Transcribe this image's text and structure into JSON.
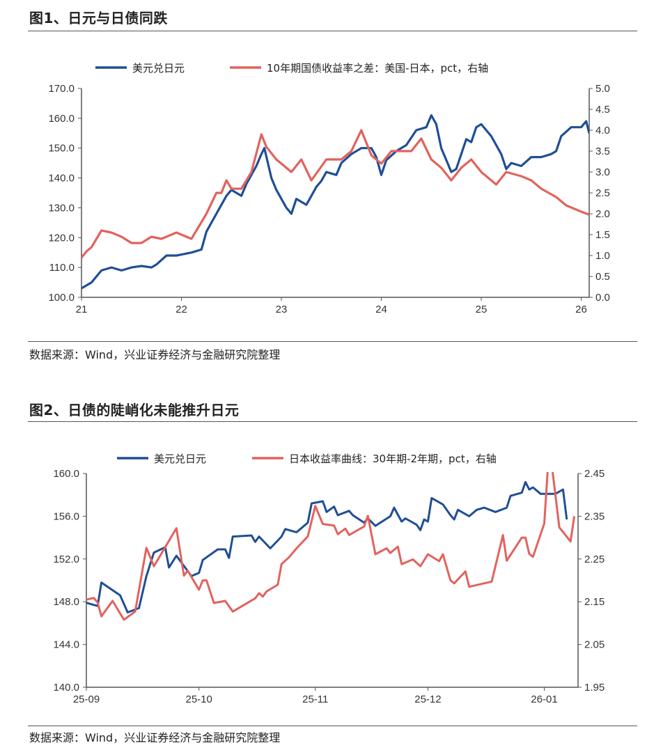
{
  "figure1": {
    "title": "图1、日元与日债同跌",
    "source": "数据来源：Wind，兴业证券经济与金融研究院整理"
  },
  "figure2": {
    "title": "图2、日债的陡峭化未能推升日元",
    "source": "数据来源：Wind，兴业证券经济与金融研究院整理"
  },
  "colors": {
    "usdjpy": "#1f4e96",
    "spread": "#e2625d",
    "axis": "#555555"
  },
  "chart_data": [
    {
      "type": "line",
      "title": "图1、日元与日债同跌",
      "x_unit": "year",
      "xlim": [
        2021,
        2026.08
      ],
      "x_ticks": [
        {
          "value": 2021,
          "label": "21"
        },
        {
          "value": 2022,
          "label": "22"
        },
        {
          "value": 2023,
          "label": "23"
        },
        {
          "value": 2024,
          "label": "24"
        },
        {
          "value": 2025,
          "label": "25"
        },
        {
          "value": 2026,
          "label": "26"
        }
      ],
      "y_left": {
        "lim": [
          100,
          170
        ],
        "ticks": [
          "100.0",
          "110.0",
          "120.0",
          "130.0",
          "140.0",
          "150.0",
          "160.0",
          "170.0"
        ]
      },
      "y_right": {
        "lim": [
          0,
          5
        ],
        "ticks": [
          "0.0",
          "0.5",
          "1.0",
          "1.5",
          "2.0",
          "2.5",
          "3.0",
          "3.5",
          "4.0",
          "4.5",
          "5.0"
        ]
      },
      "grid": false,
      "legend_position": "top",
      "series": [
        {
          "name": "美元兑日元",
          "axis": "left",
          "color_key": "usdjpy",
          "x": [
            2021.0,
            2021.05,
            2021.1,
            2021.2,
            2021.3,
            2021.4,
            2021.5,
            2021.6,
            2021.7,
            2021.75,
            2021.85,
            2021.95,
            2022.1,
            2022.2,
            2022.25,
            2022.35,
            2022.45,
            2022.5,
            2022.6,
            2022.65,
            2022.75,
            2022.8,
            2022.83,
            2022.9,
            2022.95,
            2023.05,
            2023.1,
            2023.15,
            2023.25,
            2023.3,
            2023.35,
            2023.4,
            2023.45,
            2023.55,
            2023.6,
            2023.7,
            2023.8,
            2023.9,
            2023.95,
            2024.0,
            2024.05,
            2024.15,
            2024.25,
            2024.35,
            2024.45,
            2024.5,
            2024.55,
            2024.6,
            2024.7,
            2024.75,
            2024.85,
            2024.9,
            2024.95,
            2025.0,
            2025.1,
            2025.2,
            2025.25,
            2025.3,
            2025.4,
            2025.5,
            2025.6,
            2025.7,
            2025.75,
            2025.8,
            2025.9,
            2026.0,
            2026.05,
            2026.08
          ],
          "y": [
            103,
            104,
            105,
            109,
            110,
            109,
            110,
            110.5,
            110,
            111,
            114,
            114,
            115,
            116,
            122,
            128,
            134,
            136,
            134,
            138,
            144,
            148,
            150,
            140,
            136,
            130,
            128,
            133,
            131,
            134,
            137,
            139,
            142,
            141,
            145,
            148,
            150,
            150,
            147,
            141,
            146,
            149,
            151,
            156,
            157,
            161,
            158,
            150,
            142,
            143,
            153,
            152,
            157,
            158,
            154,
            148,
            143,
            145,
            144,
            147,
            147,
            148,
            149,
            154,
            157,
            157,
            159,
            155
          ]
        },
        {
          "name": "10年期国债收益率之差：美国-日本，pct，右轴",
          "axis": "right",
          "color_key": "spread",
          "x": [
            2021.0,
            2021.05,
            2021.1,
            2021.2,
            2021.3,
            2021.4,
            2021.5,
            2021.6,
            2021.7,
            2021.8,
            2021.95,
            2022.1,
            2022.25,
            2022.35,
            2022.4,
            2022.45,
            2022.5,
            2022.6,
            2022.7,
            2022.8,
            2022.85,
            2022.95,
            2023.1,
            2023.2,
            2023.3,
            2023.45,
            2023.6,
            2023.7,
            2023.8,
            2023.9,
            2024.0,
            2024.1,
            2024.3,
            2024.4,
            2024.5,
            2024.6,
            2024.7,
            2024.8,
            2024.9,
            2025.0,
            2025.15,
            2025.25,
            2025.4,
            2025.5,
            2025.6,
            2025.75,
            2025.85,
            2026.0,
            2026.08
          ],
          "y": [
            0.95,
            1.1,
            1.2,
            1.6,
            1.55,
            1.45,
            1.3,
            1.3,
            1.45,
            1.4,
            1.55,
            1.4,
            2.0,
            2.5,
            2.5,
            2.8,
            2.6,
            2.6,
            3.0,
            3.9,
            3.6,
            3.3,
            3.0,
            3.3,
            2.8,
            3.3,
            3.3,
            3.5,
            4.0,
            3.4,
            3.2,
            3.5,
            3.5,
            3.8,
            3.3,
            3.1,
            2.8,
            3.1,
            3.3,
            3.0,
            2.7,
            3.0,
            2.9,
            2.8,
            2.6,
            2.4,
            2.2,
            2.05,
            1.98
          ]
        }
      ]
    },
    {
      "type": "line",
      "title": "图2、日债的陡峭化未能推升日元",
      "x_unit": "date",
      "xlim": [
        "2025-09-01",
        "2026-01-10"
      ],
      "x_ticks": [
        {
          "value": "2025-09-01",
          "label": "25-09"
        },
        {
          "value": "2025-10-01",
          "label": "25-10"
        },
        {
          "value": "2025-11-01",
          "label": "25-11"
        },
        {
          "value": "2025-12-01",
          "label": "25-12"
        },
        {
          "value": "2026-01-01",
          "label": "26-01"
        }
      ],
      "y_left": {
        "lim": [
          140,
          160
        ],
        "ticks": [
          "140.0",
          "144.0",
          "148.0",
          "152.0",
          "156.0",
          "160.0"
        ]
      },
      "y_right": {
        "lim": [
          1.95,
          2.45
        ],
        "ticks": [
          "1.95",
          "2.05",
          "2.15",
          "2.25",
          "2.35",
          "2.45"
        ]
      },
      "grid": false,
      "legend_position": "top",
      "series": [
        {
          "name": "美元兑日元",
          "axis": "left",
          "color_key": "usdjpy",
          "x": [
            "2025-09-01",
            "2025-09-04",
            "2025-09-05",
            "2025-09-10",
            "2025-09-12",
            "2025-09-15",
            "2025-09-17",
            "2025-09-19",
            "2025-09-22",
            "2025-09-23",
            "2025-09-25",
            "2025-09-29",
            "2025-10-01",
            "2025-10-02",
            "2025-10-06",
            "2025-10-08",
            "2025-10-09",
            "2025-10-10",
            "2025-10-15",
            "2025-10-16",
            "2025-10-17",
            "2025-10-20",
            "2025-10-23",
            "2025-10-24",
            "2025-10-27",
            "2025-10-28",
            "2025-10-30",
            "2025-10-31",
            "2025-11-03",
            "2025-11-04",
            "2025-11-06",
            "2025-11-07",
            "2025-11-10",
            "2025-11-11",
            "2025-11-14",
            "2025-11-15",
            "2025-11-17",
            "2025-11-21",
            "2025-11-22",
            "2025-11-24",
            "2025-11-25",
            "2025-11-28",
            "2025-11-29",
            "2025-11-30",
            "2025-12-01",
            "2025-12-02",
            "2025-12-05",
            "2025-12-07",
            "2025-12-08",
            "2025-12-09",
            "2025-12-12",
            "2025-12-14",
            "2025-12-16",
            "2025-12-19",
            "2025-12-22",
            "2025-12-23",
            "2025-12-26",
            "2025-12-27",
            "2025-12-28",
            "2025-12-29",
            "2025-12-31",
            "2026-01-04",
            "2026-01-06",
            "2026-01-07"
          ],
          "y": [
            147.9,
            147.6,
            149.8,
            148.6,
            147.0,
            147.4,
            150.4,
            152.6,
            153.1,
            151.2,
            152.3,
            150.4,
            150.7,
            151.9,
            152.9,
            152.9,
            152.1,
            154.1,
            154.2,
            153.6,
            154.1,
            153.0,
            154.1,
            154.8,
            154.5,
            154.8,
            155.4,
            157.2,
            157.4,
            156.4,
            156.9,
            156.1,
            156.5,
            156.1,
            155.4,
            155.8,
            155.1,
            156.0,
            156.8,
            155.5,
            155.8,
            155.2,
            154.7,
            155.7,
            155.5,
            157.7,
            157.1,
            156.1,
            155.7,
            156.6,
            156.0,
            156.6,
            156.8,
            156.4,
            156.8,
            157.9,
            158.2,
            159.2,
            158.5,
            158.7,
            158.1,
            158.1,
            158.5,
            155.7
          ]
        },
        {
          "name": "日本收益率曲线：30年期-2年期，pct，右轴",
          "axis": "right",
          "color_key": "spread",
          "x": [
            "2025-09-01",
            "2025-09-03",
            "2025-09-04",
            "2025-09-05",
            "2025-09-08",
            "2025-09-11",
            "2025-09-14",
            "2025-09-17",
            "2025-09-19",
            "2025-09-25",
            "2025-09-27",
            "2025-09-28",
            "2025-10-01",
            "2025-10-02",
            "2025-10-03",
            "2025-10-05",
            "2025-10-08",
            "2025-10-10",
            "2025-10-16",
            "2025-10-17",
            "2025-10-18",
            "2025-10-19",
            "2025-10-22",
            "2025-10-23",
            "2025-10-25",
            "2025-10-27",
            "2025-10-30",
            "2025-11-01",
            "2025-11-03",
            "2025-11-06",
            "2025-11-07",
            "2025-11-09",
            "2025-11-10",
            "2025-11-14",
            "2025-11-15",
            "2025-11-17",
            "2025-11-20",
            "2025-11-21",
            "2025-11-23",
            "2025-11-24",
            "2025-11-27",
            "2025-11-29",
            "2025-12-01",
            "2025-12-04",
            "2025-12-05",
            "2025-12-07",
            "2025-12-08",
            "2025-12-11",
            "2025-12-12",
            "2025-12-18",
            "2025-12-21",
            "2025-12-22",
            "2025-12-26",
            "2025-12-27",
            "2025-12-28",
            "2025-12-29",
            "2026-01-01",
            "2026-01-02",
            "2026-01-03",
            "2026-01-05",
            "2026-01-08",
            "2026-01-09"
          ],
          "y": [
            2.155,
            2.159,
            2.148,
            2.116,
            2.152,
            2.108,
            2.127,
            2.276,
            2.233,
            2.322,
            2.211,
            2.223,
            2.178,
            2.2,
            2.2,
            2.147,
            2.152,
            2.127,
            2.158,
            2.17,
            2.162,
            2.174,
            2.19,
            2.238,
            2.254,
            2.275,
            2.303,
            2.374,
            2.332,
            2.328,
            2.308,
            2.321,
            2.306,
            2.326,
            2.351,
            2.261,
            2.275,
            2.264,
            2.279,
            2.238,
            2.249,
            2.233,
            2.261,
            2.245,
            2.261,
            2.2,
            2.193,
            2.221,
            2.185,
            2.197,
            2.306,
            2.246,
            2.3,
            2.3,
            2.262,
            2.255,
            2.333,
            2.47,
            2.47,
            2.324,
            2.291,
            2.35
          ]
        }
      ]
    }
  ]
}
